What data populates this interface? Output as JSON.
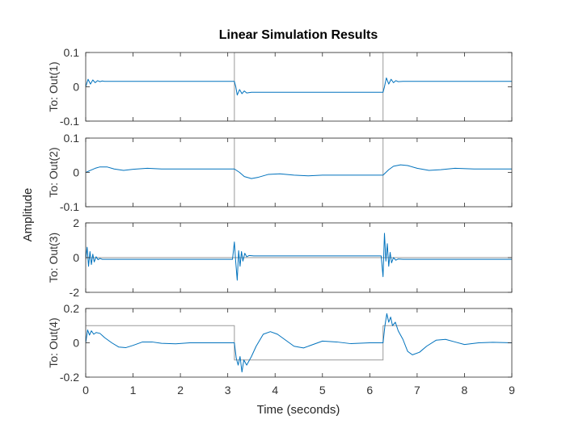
{
  "chart_data": {
    "type": "line",
    "title": "Linear Simulation Results",
    "xlabel": "Time (seconds)",
    "ylabel": "Amplitude",
    "xlim": [
      0,
      9
    ],
    "xticks": [
      "0",
      "1",
      "2",
      "3",
      "4",
      "5",
      "6",
      "7",
      "8",
      "9"
    ],
    "grid": false,
    "response_color": "#0072BD",
    "input_color": "#9a9a9a",
    "panels": [
      {
        "ylabel": "To: Out(1)",
        "ylim": [
          -0.1,
          0.1
        ],
        "yticks": [
          "0.1",
          "0",
          "-0.1"
        ],
        "input": {
          "x": [
            0,
            3.14,
            3.14,
            6.28,
            6.28
          ],
          "y": [
            -0.1,
            -0.1,
            0.1,
            0.1,
            -0.1
          ]
        },
        "response": {
          "x": [
            0,
            0.05,
            0.1,
            0.15,
            0.2,
            0.25,
            0.3,
            0.35,
            0.4,
            0.5,
            1.0,
            2.0,
            3.14,
            3.17,
            3.2,
            3.25,
            3.3,
            3.35,
            3.4,
            3.5,
            3.7,
            4.5,
            5.5,
            6.28,
            6.31,
            6.35,
            6.4,
            6.45,
            6.5,
            6.55,
            6.6,
            6.7,
            7.0,
            8.0,
            9.0
          ],
          "y": [
            0,
            0.022,
            0.008,
            0.02,
            0.012,
            0.018,
            0.015,
            0.017,
            0.016,
            0.016,
            0.016,
            0.016,
            0.016,
            0.0,
            -0.024,
            -0.008,
            -0.02,
            -0.012,
            -0.018,
            -0.016,
            -0.016,
            -0.016,
            -0.016,
            -0.016,
            0.0,
            0.026,
            0.008,
            0.022,
            0.012,
            0.018,
            0.015,
            0.016,
            0.016,
            0.016,
            0.016
          ]
        }
      },
      {
        "ylabel": "To: Out(2)",
        "ylim": [
          -0.1,
          0.1
        ],
        "yticks": [
          "0.1",
          "0",
          "-0.1"
        ],
        "input": {
          "x": [
            0,
            3.14,
            3.14,
            6.28,
            6.28
          ],
          "y": [
            -0.1,
            -0.1,
            0.1,
            0.1,
            -0.1
          ]
        },
        "response": {
          "x": [
            0,
            0.1,
            0.2,
            0.3,
            0.45,
            0.6,
            0.8,
            1.0,
            1.3,
            1.6,
            2.0,
            2.5,
            3.14,
            3.25,
            3.35,
            3.5,
            3.65,
            3.85,
            4.1,
            4.4,
            4.7,
            5.0,
            5.5,
            6.28,
            6.4,
            6.5,
            6.65,
            6.8,
            7.0,
            7.25,
            7.5,
            7.8,
            8.2,
            8.6,
            9.0
          ],
          "y": [
            0,
            0.006,
            0.012,
            0.016,
            0.016,
            0.01,
            0.006,
            0.009,
            0.012,
            0.01,
            0.01,
            0.01,
            0.01,
            0.0,
            -0.012,
            -0.018,
            -0.014,
            -0.006,
            -0.004,
            -0.008,
            -0.01,
            -0.008,
            -0.008,
            -0.008,
            0.008,
            0.018,
            0.022,
            0.02,
            0.012,
            0.006,
            0.008,
            0.012,
            0.01,
            0.01,
            0.01
          ]
        }
      },
      {
        "ylabel": "To: Out(3)",
        "ylim": [
          -2,
          2
        ],
        "yticks": [
          "2",
          "0",
          "-2"
        ],
        "input": {
          "x": [
            0,
            9
          ],
          "y": [
            0,
            0
          ]
        },
        "response": {
          "x": [
            0,
            0.03,
            0.06,
            0.09,
            0.12,
            0.15,
            0.18,
            0.22,
            0.26,
            0.3,
            0.35,
            0.45,
            1.0,
            2.0,
            3.1,
            3.14,
            3.17,
            3.2,
            3.23,
            3.26,
            3.29,
            3.32,
            3.36,
            3.4,
            3.45,
            3.55,
            4.0,
            5.0,
            6.24,
            6.28,
            6.31,
            6.34,
            6.37,
            6.4,
            6.43,
            6.46,
            6.5,
            6.55,
            6.6,
            6.7,
            7.0,
            8.0,
            9.0
          ],
          "y": [
            -0.12,
            0.6,
            -0.5,
            0.35,
            -0.4,
            0.2,
            -0.25,
            0.05,
            -0.12,
            -0.05,
            -0.1,
            -0.1,
            -0.1,
            -0.1,
            -0.1,
            0.9,
            -0.3,
            -1.3,
            0.4,
            -0.5,
            0.35,
            -0.2,
            0.25,
            0.05,
            0.12,
            0.1,
            0.1,
            0.1,
            0.1,
            -1.1,
            1.4,
            -0.2,
            0.8,
            -0.5,
            0.3,
            -0.3,
            0.0,
            -0.15,
            -0.08,
            -0.1,
            -0.1,
            -0.1,
            -0.1
          ]
        }
      },
      {
        "ylabel": "To: Out(4)",
        "ylim": [
          -0.2,
          0.2
        ],
        "yticks": [
          "0.2",
          "0",
          "-0.2"
        ],
        "input": {
          "x": [
            0,
            3.14,
            3.14,
            6.28,
            6.28,
            9
          ],
          "y": [
            0.1,
            0.1,
            -0.1,
            -0.1,
            0.1,
            0.1
          ]
        },
        "response": {
          "x": [
            0,
            0.04,
            0.08,
            0.12,
            0.17,
            0.22,
            0.3,
            0.4,
            0.55,
            0.7,
            0.85,
            1.0,
            1.2,
            1.4,
            1.6,
            1.9,
            2.2,
            2.6,
            3.14,
            3.18,
            3.22,
            3.26,
            3.3,
            3.34,
            3.4,
            3.5,
            3.6,
            3.75,
            3.9,
            4.05,
            4.2,
            4.4,
            4.6,
            4.8,
            5.0,
            5.3,
            5.6,
            6.0,
            6.28,
            6.32,
            6.36,
            6.4,
            6.44,
            6.48,
            6.54,
            6.6,
            6.7,
            6.8,
            6.9,
            7.05,
            7.2,
            7.4,
            7.6,
            7.8,
            8.0,
            8.3,
            8.6,
            9.0
          ],
          "y": [
            0,
            0.075,
            0.045,
            0.07,
            0.05,
            0.06,
            0.055,
            0.03,
            0.0,
            -0.025,
            -0.028,
            -0.015,
            0.005,
            0.005,
            -0.003,
            -0.006,
            0.0,
            0.0,
            0.0,
            -0.09,
            -0.13,
            -0.08,
            -0.17,
            -0.1,
            -0.13,
            -0.08,
            -0.02,
            0.05,
            0.065,
            0.05,
            0.02,
            -0.02,
            -0.03,
            -0.01,
            0.01,
            0.005,
            -0.005,
            0.0,
            0.0,
            0.1,
            0.17,
            0.12,
            0.15,
            0.1,
            0.12,
            0.07,
            0.02,
            -0.05,
            -0.07,
            -0.055,
            -0.02,
            0.015,
            0.02,
            0.005,
            -0.01,
            0.0,
            0.003,
            0.0
          ]
        }
      }
    ]
  }
}
